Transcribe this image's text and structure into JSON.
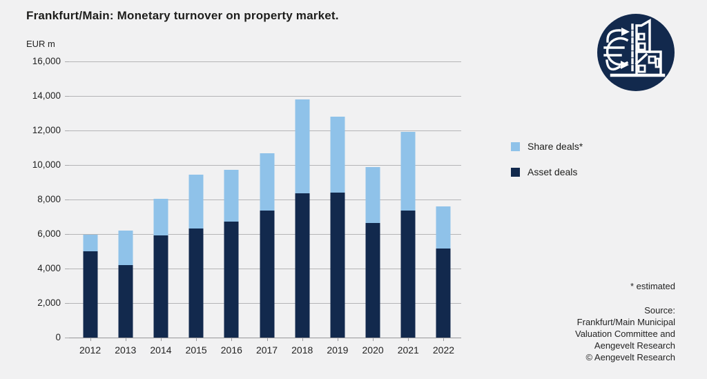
{
  "title": "Frankfurt/Main: Monetary turnover on property market.",
  "footnote": "* estimated",
  "source_lines": [
    "Source:",
    "Frankfurt/Main Municipal",
    "Valuation Committee and",
    "Aengevelt Research",
    "© Aengevelt Research"
  ],
  "legend": {
    "items": [
      {
        "label": "Share deals*",
        "color": "#8fc2e9"
      },
      {
        "label": "Asset deals",
        "color": "#12294d"
      }
    ]
  },
  "logo": {
    "name": "aengevelt-euro-property-logo",
    "circle_color": "#12294d",
    "icon_color": "#ffffff"
  },
  "colors": {
    "background": "#f1f1f2",
    "asset_deals": "#12294d",
    "share_deals": "#8fc2e9",
    "gridline": "#b4b4b6",
    "axis": "#97979a",
    "text": "#1d1d1b"
  },
  "chart_data": {
    "type": "bar",
    "stacked": true,
    "title": "Frankfurt/Main: Monetary turnover on property market.",
    "ylabel": "EUR m",
    "xlabel": "",
    "ylim": [
      0,
      16000
    ],
    "ytick_step": 2000,
    "ytick_labels_top_down": [
      "16,000",
      "14,000",
      "12,000",
      "10,000",
      "8,000",
      "6,000",
      "4,000",
      "2,000",
      "0"
    ],
    "grid": true,
    "legend_position": "right",
    "categories": [
      "2012",
      "2013",
      "2014",
      "2015",
      "2016",
      "2017",
      "2018",
      "2019",
      "2020",
      "2021",
      "2022"
    ],
    "series": [
      {
        "name": "Asset deals",
        "color": "#12294d",
        "values": [
          5000,
          4200,
          5900,
          6300,
          6700,
          7350,
          8350,
          8400,
          6650,
          7350,
          5150
        ]
      },
      {
        "name": "Share deals*",
        "color": "#8fc2e9",
        "values": [
          950,
          2000,
          2100,
          3100,
          3000,
          3300,
          5450,
          4400,
          3250,
          4550,
          2450
        ]
      }
    ],
    "totals": [
      5950,
      6200,
      8000,
      9400,
      9700,
      10650,
      13800,
      12800,
      9900,
      11900,
      7600
    ]
  }
}
